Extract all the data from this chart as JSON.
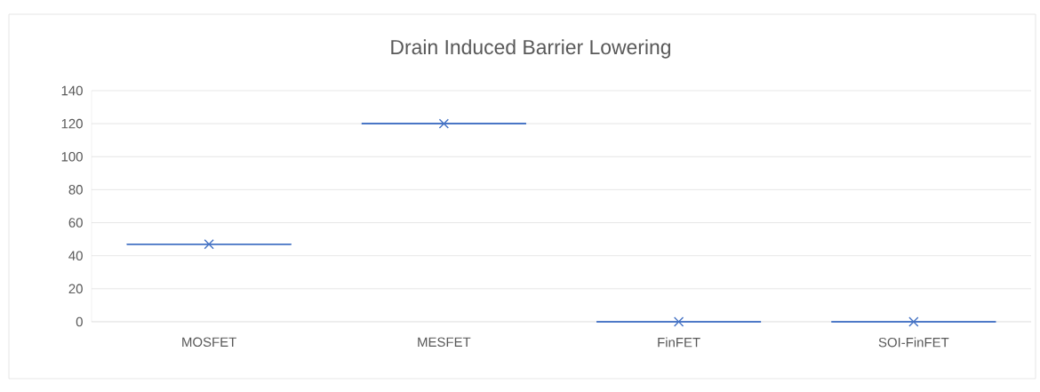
{
  "chart_data": {
    "type": "box",
    "title": "Drain Induced Barrier Lowering",
    "categories": [
      "MOSFET",
      "MESFET",
      "FinFET",
      "SOI-FinFET"
    ],
    "color": "#4472c4",
    "boxes": [
      {
        "low": 47,
        "q1": 47,
        "median": 47,
        "q3": 47,
        "high": 47,
        "mean": 47
      },
      {
        "low": 120,
        "q1": 120,
        "median": 120,
        "q3": 120,
        "high": 120,
        "mean": 120
      },
      {
        "low": 0,
        "q1": 0,
        "median": 0,
        "q3": 0,
        "high": 0,
        "mean": 0
      },
      {
        "low": 0,
        "q1": 0,
        "median": 0,
        "q3": 0,
        "high": 0,
        "mean": 0
      }
    ],
    "ylim": [
      0,
      140
    ],
    "yticks": [
      0,
      20,
      40,
      60,
      80,
      100,
      120,
      140
    ],
    "grid": "y",
    "marker": "cross"
  }
}
